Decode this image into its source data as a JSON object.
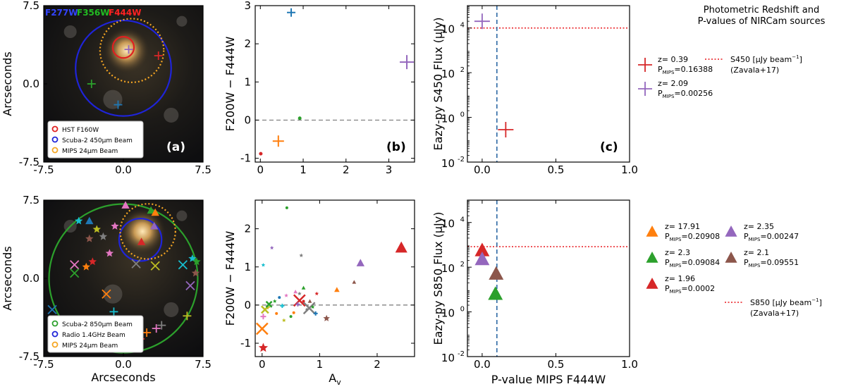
{
  "figure_title": [
    "Photometric Redshift and",
    "P-values of NIRCam sources"
  ],
  "chart_data": [
    {
      "id": "a",
      "type": "image",
      "panel_label": "(a)",
      "ylabel": "Arcseconds",
      "xlabel": "",
      "xlim": [
        -7.5,
        7.5
      ],
      "ylim": [
        -7.5,
        7.5
      ],
      "xticks": [
        "-7.5",
        "0.0",
        "7.5"
      ],
      "yticks": [
        "7.5",
        "0.0",
        "-7.5"
      ],
      "filter_labels": [
        {
          "text": "F277W",
          "color": "#3344ff"
        },
        {
          "text": "F356W",
          "color": "#22bb22"
        },
        {
          "text": "F444W",
          "color": "#ff2222"
        }
      ],
      "legend": [
        {
          "label": "HST F160W",
          "color": "#e02020"
        },
        {
          "label": "Scuba-2 450μm Beam",
          "color": "#1f24d8"
        },
        {
          "label": "MIPS 24μm Beam",
          "color": "#f5a623"
        }
      ],
      "beams": [
        {
          "name": "HST F160W",
          "x": 0.0,
          "y": 3.5,
          "r": 1.0,
          "color": "#e02020",
          "style": "solid"
        },
        {
          "name": "Scuba-2 450um",
          "x": 0.0,
          "y": 1.5,
          "r": 4.5,
          "color": "#1f24d8",
          "style": "solid"
        },
        {
          "name": "MIPS 24um",
          "x": 0.8,
          "y": 3.2,
          "r": 3.0,
          "color": "#f5a623",
          "style": "dotted"
        }
      ],
      "markers": [
        {
          "x": 0.5,
          "y": 3.3,
          "color": "#9467bd",
          "shape": "plus"
        },
        {
          "x": 3.3,
          "y": 2.7,
          "color": "#d62728",
          "shape": "plus"
        },
        {
          "x": -3.0,
          "y": 0.0,
          "color": "#2ca02c",
          "shape": "plus"
        },
        {
          "x": -0.5,
          "y": -2.0,
          "color": "#1f77b4",
          "shape": "plus"
        }
      ]
    },
    {
      "id": "b",
      "type": "scatter",
      "panel_label": "(b)",
      "ylabel": "F200W − F444W",
      "xlabel": "",
      "xlim": [
        -0.12,
        3.6
      ],
      "ylim": [
        -1.1,
        3.0
      ],
      "xticks": [
        0,
        1,
        2,
        3
      ],
      "yticks": [
        -1,
        0,
        1,
        2,
        3
      ],
      "hline": 0,
      "points": [
        {
          "x": 0.72,
          "y": 2.82,
          "color": "#1f77b4",
          "shape": "plus",
          "size": 6
        },
        {
          "x": 3.42,
          "y": 1.52,
          "color": "#9467bd",
          "shape": "plus",
          "size": 10
        },
        {
          "x": 0.92,
          "y": 0.05,
          "color": "#2ca02c",
          "shape": "dot",
          "size": 2.5
        },
        {
          "x": 0.42,
          "y": -0.55,
          "color": "#ff7f0e",
          "shape": "plus",
          "size": 8
        },
        {
          "x": 0.01,
          "y": -0.88,
          "color": "#d62728",
          "shape": "dot",
          "size": 2.5
        }
      ]
    },
    {
      "id": "c",
      "type": "scatter",
      "panel_label": "(c)",
      "yscale": "log",
      "ylabel": "Eazy-py S450 Flux (μJy)",
      "xlabel": "",
      "xlim": [
        -0.1,
        1.0
      ],
      "ylim_exp": [
        -2,
        5
      ],
      "xticks": [
        "0.0",
        "0.5",
        "1.0"
      ],
      "yticks": [
        {
          "exp": 4,
          "label": "10"
        },
        {
          "exp": 2,
          "label": "10"
        },
        {
          "exp": 0,
          "label": "10"
        },
        {
          "exp": -2,
          "label": "10"
        }
      ],
      "vline": 0.1,
      "threshold_exp": 4.0,
      "points": [
        {
          "x": 0.0,
          "y_exp": 4.3,
          "color": "#9467bd",
          "shape": "plus",
          "size": 11
        },
        {
          "x": 0.16,
          "y_exp": -0.55,
          "color": "#d62728",
          "shape": "plus",
          "size": 11
        }
      ],
      "legend": [
        {
          "z": "z= 0.39",
          "p": "=0.16388",
          "color": "#d62728",
          "shape": "plus"
        },
        {
          "z": "z= 2.09",
          "p": "=0.00256",
          "color": "#9467bd",
          "shape": "plus"
        }
      ],
      "threshold_label": [
        "S450 [μJy beam",
        "(Zavala+17)"
      ]
    },
    {
      "id": "d",
      "type": "image",
      "panel_label": "",
      "ylabel": "Arcseconds",
      "xlabel": "Arcseconds",
      "xlim": [
        -7.5,
        7.5
      ],
      "ylim": [
        -7.5,
        7.5
      ],
      "xticks": [
        "-7.5",
        "0.0",
        "7.5"
      ],
      "yticks": [
        "7.5",
        "0.0",
        "-7.5"
      ],
      "legend": [
        {
          "label": "Scuba-2 850μm Beam",
          "color": "#2ca02c"
        },
        {
          "label": "Radio 1.4GHz Beam",
          "color": "#1f24d8"
        },
        {
          "label": "MIPS 24μm Beam",
          "color": "#f5a623"
        }
      ],
      "beams": [
        {
          "name": "Scuba-2 850um",
          "x": 0.0,
          "y": 0.0,
          "r": 7.0,
          "color": "#2ca02c",
          "style": "solid"
        },
        {
          "name": "Radio 1.4GHz",
          "x": 1.6,
          "y": 3.7,
          "r": 2.0,
          "color": "#1f24d8",
          "style": "solid"
        },
        {
          "name": "MIPS 24um",
          "x": 2.3,
          "y": 4.5,
          "r": 2.6,
          "color": "#f5a623",
          "style": "dotted"
        }
      ],
      "markers": [
        {
          "x": 1.7,
          "y": 3.5,
          "color": "#d62728",
          "shape": "tri"
        },
        {
          "x": 0.2,
          "y": 7.0,
          "color": "#e377c2",
          "shape": "tri"
        },
        {
          "x": 2.6,
          "y": 6.5,
          "color": "#2ca02c",
          "shape": "tri"
        },
        {
          "x": 3.0,
          "y": 6.3,
          "color": "#ff7f0e",
          "shape": "tri"
        },
        {
          "x": 2.9,
          "y": 5.0,
          "color": "#9467bd",
          "shape": "tri"
        },
        {
          "x": -4.2,
          "y": 5.5,
          "color": "#17becf",
          "shape": "star"
        },
        {
          "x": -3.2,
          "y": 5.5,
          "color": "#1f77b4",
          "shape": "tri"
        },
        {
          "x": -2.5,
          "y": 4.7,
          "color": "#bcbd22",
          "shape": "star"
        },
        {
          "x": -1.9,
          "y": 4.0,
          "color": "#7f7f7f",
          "shape": "star"
        },
        {
          "x": -0.8,
          "y": 5.0,
          "color": "#e377c2",
          "shape": "star"
        },
        {
          "x": -3.2,
          "y": 3.8,
          "color": "#8c564b",
          "shape": "star"
        },
        {
          "x": -1.3,
          "y": 2.4,
          "color": "#e377c2",
          "shape": "star"
        },
        {
          "x": -2.9,
          "y": 1.6,
          "color": "#d62728",
          "shape": "star"
        },
        {
          "x": -4.6,
          "y": 1.3,
          "color": "#e377c2",
          "shape": "x"
        },
        {
          "x": -3.5,
          "y": 1.1,
          "color": "#ff7f0e",
          "shape": "star"
        },
        {
          "x": -4.6,
          "y": 0.5,
          "color": "#2ca02c",
          "shape": "x"
        },
        {
          "x": 1.2,
          "y": 1.4,
          "color": "#7f7f7f",
          "shape": "x"
        },
        {
          "x": 3.0,
          "y": 1.2,
          "color": "#bcbd22",
          "shape": "x"
        },
        {
          "x": 5.6,
          "y": 1.3,
          "color": "#17becf",
          "shape": "x"
        },
        {
          "x": 6.5,
          "y": 1.9,
          "color": "#17becf",
          "shape": "star"
        },
        {
          "x": 6.9,
          "y": 1.6,
          "color": "#2ca02c",
          "shape": "star"
        },
        {
          "x": 6.8,
          "y": 0.5,
          "color": "#8c564b",
          "shape": "star"
        },
        {
          "x": 6.3,
          "y": -0.7,
          "color": "#9467bd",
          "shape": "x"
        },
        {
          "x": -1.6,
          "y": -1.5,
          "color": "#ff7f0e",
          "shape": "x"
        },
        {
          "x": -6.7,
          "y": -3.0,
          "color": "#1f77b4",
          "shape": "x"
        },
        {
          "x": -0.9,
          "y": -3.2,
          "color": "#17becf",
          "shape": "plus"
        },
        {
          "x": 6.0,
          "y": -3.6,
          "color": "#bcbd22",
          "shape": "plus"
        },
        {
          "x": 3.6,
          "y": -4.5,
          "color": "#7f7f7f",
          "shape": "plus"
        },
        {
          "x": 3.1,
          "y": -4.8,
          "color": "#e377c2",
          "shape": "plus"
        },
        {
          "x": 2.2,
          "y": -5.2,
          "color": "#ff7f0e",
          "shape": "plus"
        },
        {
          "x": 1.6,
          "y": -5.8,
          "color": "#d62728",
          "shape": "plus"
        }
      ]
    },
    {
      "id": "e",
      "type": "scatter",
      "panel_label": "",
      "ylabel": "F200W − F444W",
      "xlabel": "A",
      "xlim": [
        -0.12,
        2.65
      ],
      "ylim": [
        -1.35,
        2.75
      ],
      "xticks": [
        0,
        1,
        2
      ],
      "yticks": [
        -1,
        0,
        1,
        2
      ],
      "hline": 0,
      "points": [
        {
          "x": 2.42,
          "y": 1.5,
          "color": "#d62728",
          "shape": "tri",
          "size": 9
        },
        {
          "x": 1.71,
          "y": 1.1,
          "color": "#9467bd",
          "shape": "tri",
          "size": 6
        },
        {
          "x": 0.65,
          "y": 0.12,
          "color": "#d62728",
          "shape": "x",
          "size": 8
        },
        {
          "x": 0.82,
          "y": -0.08,
          "color": "#7f7f7f",
          "shape": "x",
          "size": 8
        },
        {
          "x": 1.12,
          "y": -0.35,
          "color": "#8c564b",
          "shape": "star",
          "size": 5
        },
        {
          "x": 0.0,
          "y": -0.62,
          "color": "#ff7f0e",
          "shape": "x",
          "size": 8
        },
        {
          "x": 0.02,
          "y": -1.12,
          "color": "#d62728",
          "shape": "star",
          "size": 7
        },
        {
          "x": 0.43,
          "y": 2.55,
          "color": "#2ca02c",
          "shape": "dot",
          "size": 2
        },
        {
          "x": 0.17,
          "y": 1.5,
          "color": "#9467bd",
          "shape": "star",
          "size": 3
        },
        {
          "x": 0.02,
          "y": 1.05,
          "color": "#17becf",
          "shape": "star",
          "size": 3
        },
        {
          "x": 0.68,
          "y": 1.3,
          "color": "#7f7f7f",
          "shape": "star",
          "size": 3
        },
        {
          "x": 0.72,
          "y": 0.45,
          "color": "#2ca02c",
          "shape": "tri",
          "size": 3
        },
        {
          "x": 0.58,
          "y": 0.35,
          "color": "#e377c2",
          "shape": "tri",
          "size": 3
        },
        {
          "x": 0.42,
          "y": 0.25,
          "color": "#e377c2",
          "shape": "star",
          "size": 3
        },
        {
          "x": 1.3,
          "y": 0.4,
          "color": "#ff7f0e",
          "shape": "tri",
          "size": 4
        },
        {
          "x": 1.6,
          "y": 0.6,
          "color": "#8c564b",
          "shape": "tri",
          "size": 3
        },
        {
          "x": 0.22,
          "y": 0.1,
          "color": "#2ca02c",
          "shape": "star",
          "size": 3
        },
        {
          "x": 0.3,
          "y": 0.2,
          "color": "#1f77b4",
          "shape": "dot",
          "size": 2
        },
        {
          "x": 0.65,
          "y": 0.3,
          "color": "#7f7f7f",
          "shape": "star",
          "size": 3
        },
        {
          "x": 0.95,
          "y": 0.3,
          "color": "#d62728",
          "shape": "star",
          "size": 3
        },
        {
          "x": 0.05,
          "y": -0.12,
          "color": "#bcbd22",
          "shape": "x",
          "size": 5
        },
        {
          "x": 0.02,
          "y": -0.3,
          "color": "#e377c2",
          "shape": "plus",
          "size": 4
        },
        {
          "x": 0.1,
          "y": -0.05,
          "color": "#bcbd22",
          "shape": "plus",
          "size": 3
        },
        {
          "x": 0.12,
          "y": 0.02,
          "color": "#2ca02c",
          "shape": "x",
          "size": 4
        },
        {
          "x": 0.38,
          "y": -0.4,
          "color": "#bcbd22",
          "shape": "star",
          "size": 3
        },
        {
          "x": 0.55,
          "y": -0.2,
          "color": "#ff7f0e",
          "shape": "dot",
          "size": 2
        },
        {
          "x": 0.35,
          "y": -0.02,
          "color": "#17becf",
          "shape": "plus",
          "size": 3
        },
        {
          "x": 0.62,
          "y": 0.02,
          "color": "#9467bd",
          "shape": "plus",
          "size": 3
        },
        {
          "x": 0.88,
          "y": -0.05,
          "color": "#2ca02c",
          "shape": "star",
          "size": 3
        },
        {
          "x": 0.93,
          "y": -0.22,
          "color": "#1f77b4",
          "shape": "plus",
          "size": 3
        },
        {
          "x": 0.83,
          "y": 0.1,
          "color": "#8c564b",
          "shape": "tri",
          "size": 3
        },
        {
          "x": 0.72,
          "y": 0.1,
          "color": "#d62728",
          "shape": "dot",
          "size": 2
        },
        {
          "x": 0.5,
          "y": -0.3,
          "color": "#2ca02c",
          "shape": "dot",
          "size": 2
        },
        {
          "x": 0.25,
          "y": -0.22,
          "color": "#ff7f0e",
          "shape": "dot",
          "size": 2
        },
        {
          "x": 0.78,
          "y": -0.12,
          "color": "#7f7f7f",
          "shape": "dot",
          "size": 2
        }
      ]
    },
    {
      "id": "f",
      "type": "scatter",
      "panel_label": "",
      "yscale": "log",
      "ylabel": "Eazy-py S850 Flux (μJy)",
      "xlabel": "P-value MIPS F444W",
      "xlim": [
        -0.1,
        1.0
      ],
      "ylim_exp": [
        -2,
        5
      ],
      "xticks": [
        "0.0",
        "0.5",
        "1.0"
      ],
      "yticks": [
        {
          "exp": 4,
          "label": "10"
        },
        {
          "exp": 2,
          "label": "10"
        },
        {
          "exp": 0,
          "label": "10"
        },
        {
          "exp": -2,
          "label": "10"
        }
      ],
      "vline": 0.1,
      "threshold_exp": 2.92,
      "points": [
        {
          "x": 0.0,
          "y_exp": 2.75,
          "color": "#d62728",
          "shape": "tri",
          "size": 11
        },
        {
          "x": 0.0,
          "y_exp": 2.35,
          "color": "#9467bd",
          "shape": "tri",
          "size": 11
        },
        {
          "x": 0.095,
          "y_exp": 1.7,
          "color": "#8c564b",
          "shape": "tri",
          "size": 11
        },
        {
          "x": 0.09,
          "y_exp": 0.8,
          "color": "#2ca02c",
          "shape": "tri",
          "size": 11
        }
      ],
      "legend": [
        {
          "z": "z= 17.91",
          "p": "=0.20908",
          "color": "#ff7f0e",
          "shape": "tri"
        },
        {
          "z": "z= 2.3",
          "p": "=0.09084",
          "color": "#2ca02c",
          "shape": "tri"
        },
        {
          "z": "z= 1.96",
          "p": "=0.0002",
          "color": "#d62728",
          "shape": "tri"
        },
        {
          "z": "z= 2.35",
          "p": "=0.00247",
          "color": "#9467bd",
          "shape": "tri"
        },
        {
          "z": "z= 2.1",
          "p": "=0.09551",
          "color": "#8c564b",
          "shape": "tri"
        }
      ],
      "threshold_label": [
        "S850 [μJy beam",
        "(Zavala+17)"
      ]
    }
  ]
}
